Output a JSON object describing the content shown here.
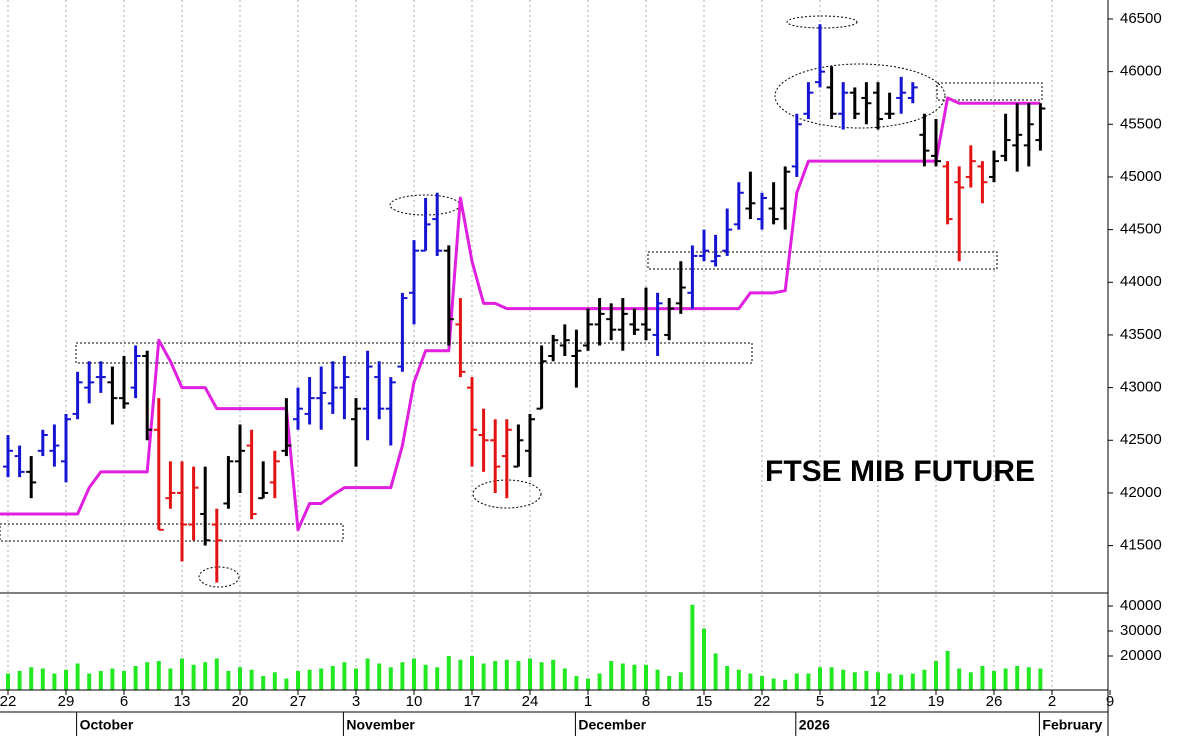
{
  "chart_data": {
    "type": "ohlc",
    "title": "FTSE MIB FUTURE",
    "ylim": [
      41050,
      46680
    ],
    "yticks": [
      41500,
      42000,
      42500,
      43000,
      43500,
      44000,
      44500,
      45000,
      45500,
      46000,
      46500
    ],
    "xticks": [
      {
        "value": 0,
        "label": "22"
      },
      {
        "value": 5,
        "label": "29"
      },
      {
        "value": 10,
        "label": "6"
      },
      {
        "value": 15,
        "label": "13"
      },
      {
        "value": 20,
        "label": "20"
      },
      {
        "value": 25,
        "label": "27"
      },
      {
        "value": 30,
        "label": "3"
      },
      {
        "value": 35,
        "label": "10"
      },
      {
        "value": 40,
        "label": "17"
      },
      {
        "value": 45,
        "label": "24"
      },
      {
        "value": 50,
        "label": "1"
      },
      {
        "value": 55,
        "label": "8"
      },
      {
        "value": 60,
        "label": "15"
      },
      {
        "value": 65,
        "label": "22"
      },
      {
        "value": 70,
        "label": "5"
      },
      {
        "value": 75,
        "label": "12"
      },
      {
        "value": 80,
        "label": "19"
      },
      {
        "value": 85,
        "label": "26"
      },
      {
        "value": 90,
        "label": "2"
      },
      {
        "value": 95,
        "label": "9"
      }
    ],
    "month_labels": [
      {
        "value": 6,
        "label": "October"
      },
      {
        "value": 29,
        "label": "November"
      },
      {
        "value": 49,
        "label": "December"
      },
      {
        "value": 68,
        "label": "2026"
      },
      {
        "value": 89,
        "label": "February"
      }
    ],
    "palette": {
      "B": "#1414d2",
      "R": "#e41212",
      "K": "#000000"
    },
    "bar_colors": "BBKBBBBBBKKBKRRRRKRKKRKRKBBBBBKBBBBBBBKRRRRRKKKKKKKKKKKKBKKBBBBBKBKKBBBKBKKKKBBKKRRRRKKKKK",
    "open": [
      42250,
      42350,
      42200,
      42400,
      42400,
      42300,
      42750,
      43000,
      43100,
      43050,
      42900,
      43000,
      43300,
      42600,
      41950,
      42000,
      41700,
      41800,
      41700,
      41900,
      42300,
      42450,
      41950,
      42100,
      42400,
      42700,
      42750,
      42900,
      42850,
      43000,
      42700,
      42800,
      43100,
      42800,
      43200,
      43900,
      44300,
      44600,
      44300,
      43600,
      43000,
      42550,
      42500,
      42350,
      42250,
      42400,
      42800,
      43300,
      43400,
      43300,
      43400,
      43600,
      43650,
      43550,
      43600,
      43600,
      43500,
      43500,
      43800,
      43900,
      44250,
      44200,
      44300,
      44550,
      44700,
      44600,
      44700,
      44700,
      45100,
      45600,
      45900,
      45850,
      45600,
      45800,
      45750,
      45800,
      45600,
      45750,
      45750,
      45400,
      45200,
      45100,
      44950,
      45000,
      45100,
      45000,
      45200,
      45300,
      45300,
      45350
    ],
    "high": [
      42550,
      42450,
      42350,
      42600,
      42650,
      42750,
      43150,
      43250,
      43250,
      43200,
      43300,
      43400,
      43350,
      42900,
      42300,
      42300,
      42250,
      42250,
      41850,
      42350,
      42650,
      42600,
      42300,
      42400,
      42900,
      43000,
      43100,
      43200,
      43250,
      43300,
      42900,
      43350,
      43250,
      43100,
      43900,
      44400,
      44800,
      44850,
      44350,
      43850,
      43100,
      42800,
      42700,
      42700,
      42650,
      42750,
      43400,
      43500,
      43600,
      43550,
      43750,
      43850,
      43800,
      43850,
      43750,
      43950,
      43900,
      43850,
      44200,
      44350,
      44500,
      44450,
      44700,
      44950,
      45050,
      44850,
      44950,
      45100,
      45600,
      45900,
      46450,
      46050,
      45900,
      45850,
      45900,
      45900,
      45800,
      45950,
      45900,
      45600,
      45550,
      45150,
      45100,
      45300,
      45150,
      45250,
      45600,
      45700,
      45700,
      45700
    ],
    "low": [
      42150,
      42150,
      41950,
      42350,
      42250,
      42100,
      42700,
      42850,
      42950,
      42650,
      42800,
      42900,
      42500,
      41650,
      41850,
      41350,
      41550,
      41500,
      41150,
      41850,
      42000,
      41750,
      41950,
      41950,
      42350,
      42600,
      42650,
      42600,
      42750,
      42700,
      42250,
      42500,
      42700,
      42450,
      43150,
      43600,
      44300,
      44250,
      43400,
      43100,
      42250,
      42200,
      42000,
      41950,
      42250,
      42150,
      42800,
      43250,
      43300,
      43000,
      43350,
      43400,
      43450,
      43350,
      43500,
      43450,
      43300,
      43450,
      43700,
      43750,
      44200,
      44150,
      44250,
      44500,
      44600,
      44500,
      44550,
      44500,
      45000,
      45550,
      45850,
      45550,
      45450,
      45550,
      45500,
      45450,
      45550,
      45600,
      45700,
      45100,
      45100,
      44550,
      44200,
      44900,
      44750,
      44950,
      45150,
      45050,
      45100,
      45250
    ],
    "close": [
      42400,
      42200,
      42100,
      42550,
      42450,
      42700,
      43050,
      43050,
      43100,
      42900,
      42850,
      43300,
      42600,
      41650,
      42000,
      41700,
      42050,
      41550,
      41550,
      42300,
      42400,
      41800,
      42000,
      42300,
      42450,
      42800,
      42900,
      42950,
      43000,
      43100,
      42800,
      43200,
      42800,
      43050,
      43850,
      44300,
      44550,
      44300,
      43650,
      43150,
      42600,
      42500,
      42250,
      42600,
      42500,
      42700,
      43250,
      43450,
      43450,
      43350,
      43600,
      43700,
      43550,
      43700,
      43550,
      43550,
      43800,
      43750,
      43950,
      44250,
      44300,
      44250,
      44500,
      44850,
      44750,
      44800,
      44600,
      45050,
      45500,
      45800,
      46000,
      45600,
      45800,
      45600,
      45700,
      45550,
      45600,
      45800,
      45850,
      45250,
      45150,
      44600,
      44900,
      45150,
      44950,
      45150,
      45350,
      45400,
      45500,
      45650
    ],
    "line": {
      "color": "#e01fe0",
      "values": [
        41800,
        41800,
        41800,
        41800,
        41800,
        41800,
        41800,
        42050,
        42200,
        42200,
        42200,
        42200,
        42200,
        43450,
        43250,
        43000,
        43000,
        43000,
        42800,
        42800,
        42800,
        42800,
        42800,
        42800,
        42800,
        41650,
        41900,
        41900,
        41980,
        42050,
        42050,
        42050,
        42050,
        42050,
        42450,
        43050,
        43350,
        43350,
        43350,
        44800,
        44200,
        43800,
        43800,
        43750,
        43750,
        43750,
        43750,
        43750,
        43750,
        43750,
        43750,
        43750,
        43750,
        43750,
        43750,
        43750,
        43750,
        43750,
        43750,
        43750,
        43750,
        43750,
        43750,
        43750,
        43900,
        43900,
        43900,
        43920,
        44850,
        45150,
        45150,
        45150,
        45150,
        45150,
        45150,
        45150,
        45150,
        45150,
        45150,
        45150,
        45150,
        45750,
        45700,
        45700,
        45700,
        45700,
        45700,
        45700,
        45700,
        45700
      ]
    },
    "volume": {
      "color": "#22e822",
      "ylim": [
        6400,
        45200
      ],
      "yticks": [
        20000,
        30000,
        40000
      ],
      "values": [
        13000,
        14000,
        15500,
        15000,
        13000,
        14500,
        17000,
        13000,
        14000,
        15000,
        14000,
        16000,
        17500,
        18000,
        15000,
        19000,
        16500,
        17500,
        19000,
        14000,
        15500,
        14500,
        12000,
        13500,
        11000,
        14000,
        14500,
        15000,
        16000,
        17500,
        15000,
        19000,
        17000,
        15500,
        17500,
        19000,
        16500,
        15500,
        20000,
        18500,
        20000,
        17000,
        18000,
        18500,
        18000,
        19000,
        17500,
        18500,
        15000,
        12000,
        11000,
        13000,
        18000,
        17000,
        16500,
        16500,
        14500,
        12000,
        13500,
        40500,
        31000,
        21000,
        16000,
        14500,
        13000,
        12000,
        11000,
        10500,
        13000,
        13000,
        15500,
        15500,
        14500,
        13500,
        14000,
        13500,
        13000,
        12500,
        13000,
        14500,
        18000,
        22000,
        15000,
        13500,
        16000,
        14000,
        15000,
        16000,
        15500,
        15000
      ]
    }
  }
}
